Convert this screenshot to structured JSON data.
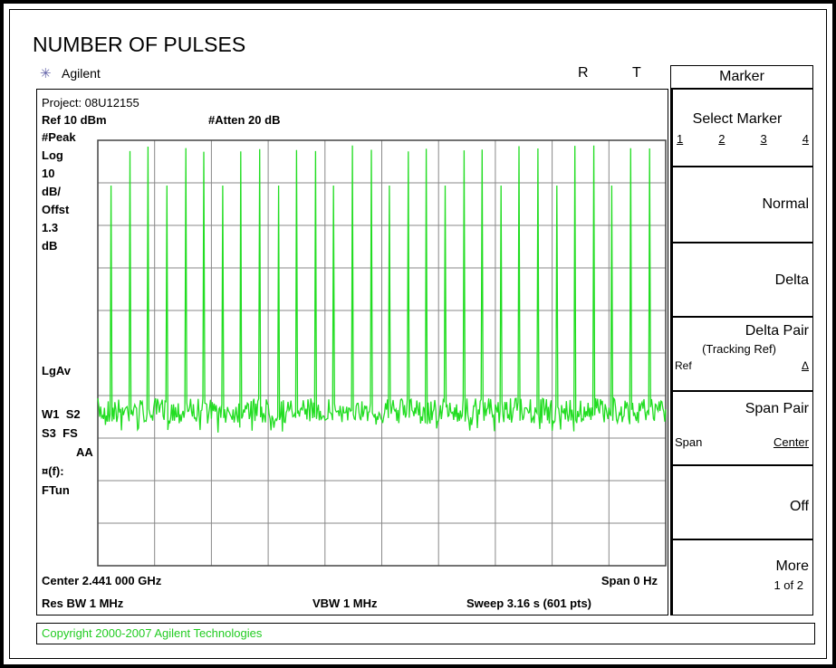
{
  "title": "NUMBER OF PULSES",
  "header": {
    "brand": "Agilent",
    "indicators": [
      "R",
      "T"
    ]
  },
  "screen": {
    "project": "Project: 08U12155",
    "ref": "Ref 10 dBm",
    "atten": "#Atten 20 dB",
    "left_labels": [
      "#Peak",
      "Log",
      "10",
      "dB/",
      "Offst",
      "1.3",
      "dB"
    ],
    "lgav": "LgAv",
    "status": [
      "W1  S2",
      "S3  FS",
      "AA",
      "¤(f):",
      "FTun"
    ],
    "bottom": {
      "center": "Center 2.441 000 GHz",
      "span": "Span 0 Hz",
      "res_bw": "Res BW 1 MHz",
      "vbw": "VBW 1 MHz",
      "sweep": "Sweep 3.16 s (601 pts)"
    }
  },
  "menu": {
    "title": "Marker",
    "keys": [
      {
        "label": "Select Marker",
        "options": [
          "1",
          "2",
          "3",
          "4"
        ]
      },
      {
        "label": "Normal"
      },
      {
        "label": "Delta"
      },
      {
        "label": "Delta Pair",
        "sub": "(Tracking Ref)",
        "left": "Ref",
        "right": "Δ"
      },
      {
        "label": "Span Pair",
        "left": "Span",
        "right": "Center"
      },
      {
        "label": "Off"
      },
      {
        "label": "More",
        "sub": "1 of 2"
      }
    ]
  },
  "copyright": "Copyright 2000-2007 Agilent Technologies"
}
